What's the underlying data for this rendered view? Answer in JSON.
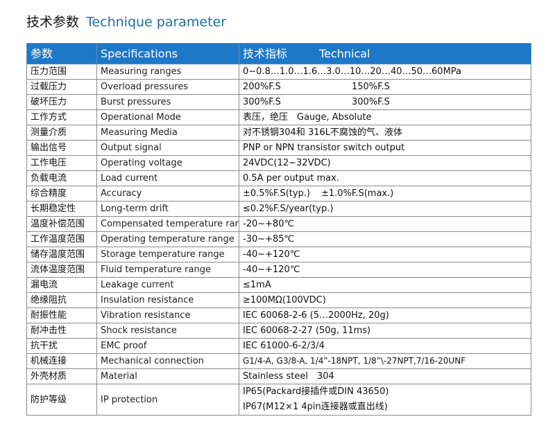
{
  "title": {
    "cn": "技术参数",
    "en": "Technique parameter"
  },
  "header": {
    "col1": "参数",
    "col2": "Specifications",
    "col3_cn": "技术指标",
    "col3_en": "Technical"
  },
  "rows": [
    {
      "cn": "压力范围",
      "en": "Measuring ranges",
      "value": "0~0.8…1.0…1.6…3.0…10…20…40…50…60MPa"
    },
    {
      "cn": "过载压力",
      "en": "Overload pressures",
      "value": "200%F.S",
      "value2": "150%F.S"
    },
    {
      "cn": "破坏压力",
      "en": "Burst pressures",
      "value": "300%F.S",
      "value2": "300%F.S"
    },
    {
      "cn": "工作方式",
      "en": "Operational Mode",
      "value": "表压，绝压　Gauge, Absolute"
    },
    {
      "cn": "测量介质",
      "en": "Measuring Media",
      "value": "对不锈钢304和 316L不腐蚀的气、液体"
    },
    {
      "cn": "输出信号",
      "en": "Output signal",
      "value": "PNP or NPN transistor switch output"
    },
    {
      "cn": "工作电压",
      "en": "Operating voltage",
      "value": "24VDC(12~32VDC)"
    },
    {
      "cn": "负载电流",
      "en": "Load current",
      "value": "0.5A per output max."
    },
    {
      "cn": "综合精度",
      "en": "Accuracy",
      "value": "±0.5%F.S(typ.)",
      "value2": "±1.0%F.S(max.)"
    },
    {
      "cn": "长期稳定性",
      "en": "Long-term drift",
      "value": "≤0.2%F.S/year(typ.)"
    },
    {
      "cn": "温度补偿范围",
      "en": "Compensated temperature range",
      "value": "-20~+80℃"
    },
    {
      "cn": "工作温度范围",
      "en": "Operating temperature range",
      "value": "-30~+85℃"
    },
    {
      "cn": "储存温度范围",
      "en": "Storage temperature range",
      "value": "-40~+120℃"
    },
    {
      "cn": "流体温度范围",
      "en": "Fluid temperature range",
      "value": "-40~+120℃"
    },
    {
      "cn": "漏电流",
      "en": "Leakage current",
      "value": "≤1mA"
    },
    {
      "cn": "绝缘阻抗",
      "en": "Insulation resistance",
      "value": "≥100MΩ(100VDC)"
    },
    {
      "cn": "耐振性能",
      "en": "Vibration resistance",
      "value": "IEC 60068-2-6 (5…2000Hz, 20g)"
    },
    {
      "cn": "耐冲击性",
      "en": "Shock resistance",
      "value": "IEC 60068-2-27 (50g, 11ms)"
    },
    {
      "cn": "抗干扰",
      "en": "EMC proof",
      "value": "IEC 61000-6-2/3/4"
    },
    {
      "cn": "机械连接",
      "en": "Mechanical connection",
      "value": "G1/4-A, G3/8-A, 1/4”-18NPT, 1/8”\\-27NPT,7/16-20UNF"
    },
    {
      "cn": "外壳材质",
      "en": "Material",
      "value": "Stainless steel　304"
    },
    {
      "cn": "防护等级",
      "en": "IP protection",
      "value": "IP65(Packard接插件或DIN 43650)",
      "value2": "IP67(M12×1 4pin连接器或直出线)"
    }
  ]
}
